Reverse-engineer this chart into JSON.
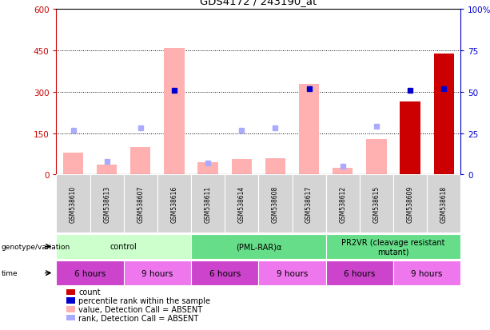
{
  "title": "GDS4172 / 243190_at",
  "samples": [
    "GSM538610",
    "GSM538613",
    "GSM538607",
    "GSM538616",
    "GSM538611",
    "GSM538614",
    "GSM538608",
    "GSM538617",
    "GSM538612",
    "GSM538615",
    "GSM538609",
    "GSM538618"
  ],
  "bar_values": [
    80,
    35,
    100,
    460,
    45,
    55,
    60,
    330,
    25,
    130,
    265,
    440
  ],
  "bar_colors": [
    "#ffb0b0",
    "#ffb0b0",
    "#ffb0b0",
    "#ffb0b0",
    "#ffb0b0",
    "#ffb0b0",
    "#ffb0b0",
    "#ffb0b0",
    "#ffb0b0",
    "#ffb0b0",
    "#cc0000",
    "#cc0000"
  ],
  "rank_dots_pct": [
    27,
    8,
    28,
    51,
    7,
    27,
    28,
    52,
    5,
    29,
    51,
    52
  ],
  "rank_dot_colors": [
    "#aaaaff",
    "#aaaaff",
    "#aaaaff",
    "#0000cc",
    "#aaaaff",
    "#aaaaff",
    "#aaaaff",
    "#0000cc",
    "#aaaaff",
    "#aaaaff",
    "#0000cc",
    "#0000cc"
  ],
  "ylim_left": [
    0,
    600
  ],
  "ylim_right": [
    0,
    100
  ],
  "yticks_left": [
    0,
    150,
    300,
    450,
    600
  ],
  "yticks_right": [
    0,
    25,
    50,
    75,
    100
  ],
  "ytick_labels_left": [
    "0",
    "150",
    "300",
    "450",
    "600"
  ],
  "ytick_labels_right": [
    "0",
    "25",
    "50",
    "75",
    "100%"
  ],
  "grid_yticks": [
    150,
    300,
    450
  ],
  "left_axis_color": "#cc0000",
  "right_axis_color": "#0000cc",
  "bg_color": "#ffffff",
  "plot_bg": "#ffffff",
  "group_labels": [
    "control",
    "(PML-RAR)α",
    "PR2VR (cleavage resistant\nmutant)"
  ],
  "group_starts": [
    0,
    4,
    8
  ],
  "group_ends": [
    4,
    8,
    12
  ],
  "group_colors": [
    "#ccffcc",
    "#66dd88",
    "#66dd88"
  ],
  "time_labels": [
    "6 hours",
    "9 hours",
    "6 hours",
    "9 hours",
    "6 hours",
    "9 hours"
  ],
  "time_starts": [
    0,
    2,
    4,
    6,
    8,
    10
  ],
  "time_ends": [
    2,
    4,
    6,
    8,
    10,
    12
  ],
  "time_colors": [
    "#cc44cc",
    "#ee77ee",
    "#cc44cc",
    "#ee77ee",
    "#cc44cc",
    "#ee77ee"
  ],
  "legend_items": [
    {
      "label": "count",
      "color": "#cc0000"
    },
    {
      "label": "percentile rank within the sample",
      "color": "#0000cc"
    },
    {
      "label": "value, Detection Call = ABSENT",
      "color": "#ffb0b0"
    },
    {
      "label": "rank, Detection Call = ABSENT",
      "color": "#aaaaff"
    }
  ]
}
